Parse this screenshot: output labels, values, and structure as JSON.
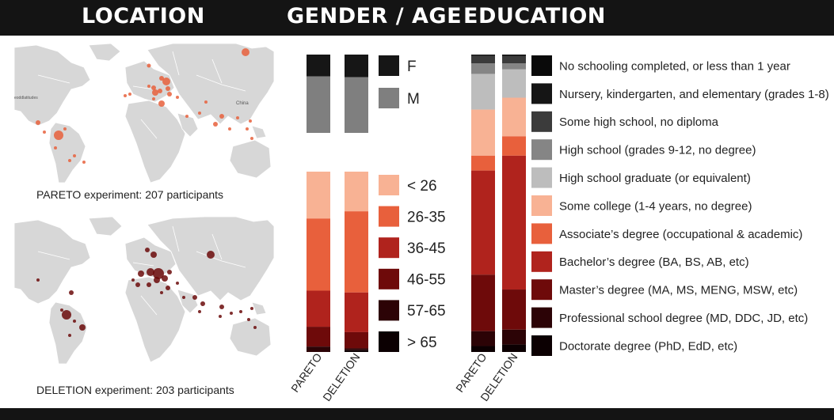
{
  "headers": {
    "location": "LOCATION",
    "gender_age": "GENDER / AGE",
    "education": "EDUCATION"
  },
  "maps": {
    "pareto": {
      "caption": "PARETO experiment: 207 participants",
      "dot_color": "#e8603c",
      "labels": [
        "eoddlatitudes",
        "China"
      ]
    },
    "deletion": {
      "caption": "DELETION experiment: 203 participants",
      "dot_color": "#6b0a0a"
    }
  },
  "chart_data": [
    {
      "type": "bar",
      "stacked": true,
      "normalized": true,
      "title": "GENDER / AGE",
      "categories": [
        "PARETO",
        "DELETION"
      ],
      "series": [
        {
          "name": "F",
          "color": "#161616",
          "values": [
            0.28,
            0.29
          ]
        },
        {
          "name": "M",
          "color": "#7f7f7f",
          "values": [
            0.72,
            0.71
          ]
        }
      ],
      "legend": "right"
    },
    {
      "type": "bar",
      "stacked": true,
      "normalized": true,
      "categories": [
        "PARETO",
        "DELETION"
      ],
      "series": [
        {
          "name": "< 26",
          "color": "#f8b294",
          "values": [
            0.26,
            0.22
          ]
        },
        {
          "name": "26-35",
          "color": "#e8603c",
          "values": [
            0.4,
            0.45
          ]
        },
        {
          "name": "36-45",
          "color": "#b0231d",
          "values": [
            0.2,
            0.22
          ]
        },
        {
          "name": "46-55",
          "color": "#6e0a0a",
          "values": [
            0.11,
            0.09
          ]
        },
        {
          "name": "57-65",
          "color": "#2c0306",
          "values": [
            0.03,
            0.01
          ]
        },
        {
          "name": "> 65",
          "color": "#0c0002",
          "values": [
            0.0,
            0.01
          ]
        }
      ],
      "legend": "right"
    },
    {
      "type": "bar",
      "stacked": true,
      "normalized": true,
      "title": "EDUCATION",
      "categories": [
        "PARETO",
        "DELETION"
      ],
      "series": [
        {
          "name": "No schooling completed, or less than 1 year",
          "color": "#0a0a0a",
          "values": [
            0.0,
            0.005
          ]
        },
        {
          "name": "Nursery, kindergarten, and elementary (grades 1-8)",
          "color": "#151515",
          "values": [
            0.005,
            0.0
          ]
        },
        {
          "name": "Some high school, no diploma",
          "color": "#3b3b3b",
          "values": [
            0.025,
            0.025
          ]
        },
        {
          "name": "High school (grades 9-12, no degree)",
          "color": "#858585",
          "values": [
            0.035,
            0.02
          ]
        },
        {
          "name": "High school graduate (or equivalent)",
          "color": "#bdbdbd",
          "values": [
            0.12,
            0.095
          ]
        },
        {
          "name": "Some college (1-4 years, no degree)",
          "color": "#f8b294",
          "values": [
            0.155,
            0.13
          ]
        },
        {
          "name": "Associate’s degree (occupational & academic)",
          "color": "#e8603c",
          "values": [
            0.05,
            0.065
          ]
        },
        {
          "name": "Bachelor’s degree (BA, BS, AB, etc)",
          "color": "#b0231d",
          "values": [
            0.35,
            0.45
          ]
        },
        {
          "name": "Master’s degree (MA, MS, MENG, MSW, etc)",
          "color": "#6e0a0a",
          "values": [
            0.19,
            0.135
          ]
        },
        {
          "name": "Professional school degree (MD, DDC, JD, etc)",
          "color": "#2c0306",
          "values": [
            0.05,
            0.05
          ]
        },
        {
          "name": "Doctorate degree (PhD, EdD, etc)",
          "color": "#0c0002",
          "values": [
            0.02,
            0.025
          ]
        }
      ],
      "legend": "right"
    }
  ]
}
